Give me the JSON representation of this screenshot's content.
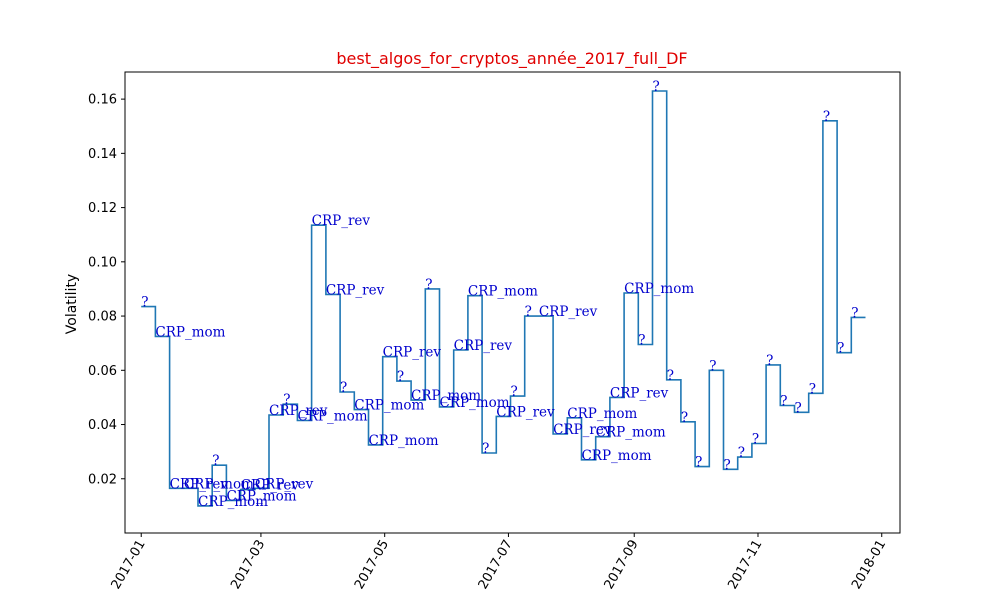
{
  "chart_data": {
    "type": "line",
    "title": "best_algos_for_cryptos_année_2017_full_DF",
    "xlabel": "",
    "ylabel": "Volatility",
    "xlim": [
      "2016-12-24",
      "2018-01-10"
    ],
    "ylim": [
      0.0,
      0.17
    ],
    "x_ticks": [
      "2017-01",
      "2017-03",
      "2017-05",
      "2017-07",
      "2017-09",
      "2017-11",
      "2018-01"
    ],
    "y_ticks": [
      "0.02",
      "0.04",
      "0.06",
      "0.08",
      "0.10",
      "0.12",
      "0.14",
      "0.16"
    ],
    "grid": false,
    "line_color": "#1f77b4",
    "annotation_color": "#0000cd",
    "title_color": "#e00000",
    "points": [
      {
        "date": "2017-01-01",
        "value": 0.0835,
        "label": "?"
      },
      {
        "date": "2017-01-08",
        "value": 0.0725,
        "label": "CRP_mom"
      },
      {
        "date": "2017-01-15",
        "value": 0.0165,
        "label": "CRP_rev"
      },
      {
        "date": "2017-01-22",
        "value": 0.0165,
        "label": "CRP_mom"
      },
      {
        "date": "2017-01-29",
        "value": 0.01,
        "label": "CRP_mom"
      },
      {
        "date": "2017-02-05",
        "value": 0.025,
        "label": "?"
      },
      {
        "date": "2017-02-12",
        "value": 0.012,
        "label": "CRP_mom"
      },
      {
        "date": "2017-02-19",
        "value": 0.016,
        "label": "CRP_rev"
      },
      {
        "date": "2017-02-26",
        "value": 0.0165,
        "label": "CRP_rev"
      },
      {
        "date": "2017-03-05",
        "value": 0.0435,
        "label": "CRP_rev"
      },
      {
        "date": "2017-03-12",
        "value": 0.0475,
        "label": "?"
      },
      {
        "date": "2017-03-19",
        "value": 0.0415,
        "label": "CRP_mom"
      },
      {
        "date": "2017-03-26",
        "value": 0.1135,
        "label": "CRP_rev"
      },
      {
        "date": "2017-04-02",
        "value": 0.088,
        "label": "CRP_rev"
      },
      {
        "date": "2017-04-09",
        "value": 0.052,
        "label": "?"
      },
      {
        "date": "2017-04-16",
        "value": 0.0455,
        "label": "CRP_mom"
      },
      {
        "date": "2017-04-23",
        "value": 0.0325,
        "label": "CRP_mom"
      },
      {
        "date": "2017-04-30",
        "value": 0.065,
        "label": "CRP_rev"
      },
      {
        "date": "2017-05-07",
        "value": 0.056,
        "label": "?"
      },
      {
        "date": "2017-05-14",
        "value": 0.049,
        "label": "CRP_mom"
      },
      {
        "date": "2017-05-21",
        "value": 0.09,
        "label": "?"
      },
      {
        "date": "2017-05-28",
        "value": 0.0465,
        "label": "CRP_mom"
      },
      {
        "date": "2017-06-04",
        "value": 0.0675,
        "label": "CRP_rev"
      },
      {
        "date": "2017-06-11",
        "value": 0.0875,
        "label": "CRP_mom"
      },
      {
        "date": "2017-06-18",
        "value": 0.0295,
        "label": "?"
      },
      {
        "date": "2017-06-25",
        "value": 0.043,
        "label": "CRP_rev"
      },
      {
        "date": "2017-07-02",
        "value": 0.0505,
        "label": "?"
      },
      {
        "date": "2017-07-09",
        "value": 0.08,
        "label": "?"
      },
      {
        "date": "2017-07-16",
        "value": 0.08,
        "label": "CRP_rev"
      },
      {
        "date": "2017-07-23",
        "value": 0.0365,
        "label": "CRP_rev"
      },
      {
        "date": "2017-07-30",
        "value": 0.0425,
        "label": "CRP_mom"
      },
      {
        "date": "2017-08-06",
        "value": 0.027,
        "label": "CRP_mom"
      },
      {
        "date": "2017-08-13",
        "value": 0.0355,
        "label": "CRP_mom"
      },
      {
        "date": "2017-08-20",
        "value": 0.05,
        "label": "CRP_rev"
      },
      {
        "date": "2017-08-27",
        "value": 0.0885,
        "label": "CRP_mom"
      },
      {
        "date": "2017-09-03",
        "value": 0.0695,
        "label": "?"
      },
      {
        "date": "2017-09-10",
        "value": 0.163,
        "label": "?"
      },
      {
        "date": "2017-09-17",
        "value": 0.0565,
        "label": "?"
      },
      {
        "date": "2017-09-24",
        "value": 0.041,
        "label": "?"
      },
      {
        "date": "2017-10-01",
        "value": 0.0245,
        "label": "?"
      },
      {
        "date": "2017-10-08",
        "value": 0.06,
        "label": "?"
      },
      {
        "date": "2017-10-15",
        "value": 0.0235,
        "label": "?"
      },
      {
        "date": "2017-10-22",
        "value": 0.028,
        "label": "?"
      },
      {
        "date": "2017-10-29",
        "value": 0.033,
        "label": "?"
      },
      {
        "date": "2017-11-05",
        "value": 0.062,
        "label": "?"
      },
      {
        "date": "2017-11-12",
        "value": 0.047,
        "label": "?"
      },
      {
        "date": "2017-11-19",
        "value": 0.0445,
        "label": "?"
      },
      {
        "date": "2017-11-26",
        "value": 0.0515,
        "label": "?"
      },
      {
        "date": "2017-12-03",
        "value": 0.152,
        "label": "?"
      },
      {
        "date": "2017-12-10",
        "value": 0.0665,
        "label": "?"
      },
      {
        "date": "2017-12-17",
        "value": 0.0795,
        "label": "?"
      }
    ],
    "x_end": "2017-12-24"
  }
}
